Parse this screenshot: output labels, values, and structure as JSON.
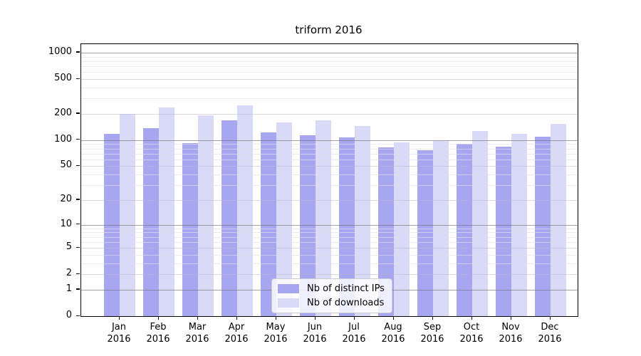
{
  "title": "triform 2016",
  "colors": {
    "distinct_ips": "#a6a6f1",
    "downloads": "#d9d9f8",
    "spine": "#000000"
  },
  "legend": {
    "items": [
      {
        "key": "distinct_ips",
        "label": "Nb of distinct IPs"
      },
      {
        "key": "downloads",
        "label": "Nb of downloads"
      }
    ]
  },
  "y_axis": {
    "tick_labels": [
      "1000",
      "500",
      "200",
      "100",
      "50",
      "20",
      "10",
      "5",
      "2",
      "1",
      "0"
    ],
    "tick_values": [
      1000,
      500,
      200,
      100,
      50,
      20,
      10,
      5,
      2,
      1,
      0
    ]
  },
  "x_axis": {
    "months": [
      "Jan",
      "Feb",
      "Mar",
      "Apr",
      "May",
      "Jun",
      "Jul",
      "Aug",
      "Sep",
      "Oct",
      "Nov",
      "Dec"
    ],
    "year": "2016"
  },
  "chart_data": {
    "type": "bar",
    "title": "triform 2016",
    "categories": [
      "Jan 2016",
      "Feb 2016",
      "Mar 2016",
      "Apr 2016",
      "May 2016",
      "Jun 2016",
      "Jul 2016",
      "Aug 2016",
      "Sep 2016",
      "Oct 2016",
      "Nov 2016",
      "Dec 2016"
    ],
    "series": [
      {
        "name": "Nb of distinct IPs",
        "key": "distinct_ips",
        "values": [
          118,
          137,
          93,
          168,
          123,
          113,
          108,
          82,
          77,
          91,
          84,
          110
        ]
      },
      {
        "name": "Nb of downloads",
        "key": "downloads",
        "values": [
          200,
          235,
          193,
          250,
          161,
          170,
          146,
          94,
          98,
          127,
          119,
          153
        ]
      }
    ],
    "xlabel": "",
    "ylabel": "",
    "yscale": "log1p",
    "ylim": [
      0,
      1000
    ],
    "yticks": [
      0,
      1,
      2,
      5,
      10,
      20,
      50,
      100,
      200,
      500,
      1000
    ],
    "grid": true,
    "legend_position": "lower center"
  }
}
